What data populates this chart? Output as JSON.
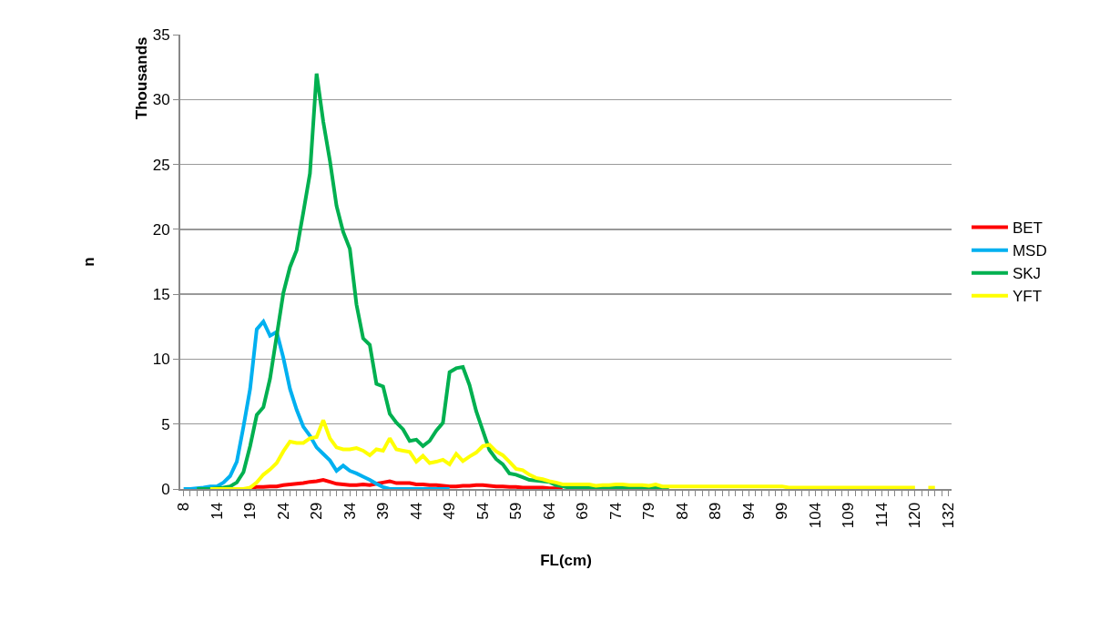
{
  "chart_data": {
    "type": "line",
    "xlabel": "FL(cm)",
    "ylabel": "n",
    "annotations": [
      "Thousands"
    ],
    "categories": [
      "8",
      null,
      null,
      null,
      null,
      "14",
      null,
      null,
      null,
      null,
      "19",
      null,
      null,
      null,
      null,
      "24",
      null,
      null,
      null,
      null,
      "29",
      null,
      null,
      null,
      null,
      "34",
      null,
      null,
      null,
      null,
      "39",
      null,
      null,
      null,
      null,
      "44",
      null,
      null,
      null,
      null,
      "49",
      null,
      null,
      null,
      null,
      "54",
      null,
      null,
      null,
      null,
      "59",
      null,
      null,
      null,
      null,
      "64",
      null,
      null,
      null,
      null,
      "69",
      null,
      null,
      null,
      null,
      "74",
      null,
      null,
      null,
      null,
      "79",
      null,
      null,
      null,
      null,
      "84",
      null,
      null,
      null,
      null,
      "89",
      null,
      null,
      null,
      null,
      "94",
      null,
      null,
      null,
      null,
      "99",
      null,
      null,
      null,
      null,
      "104",
      null,
      null,
      null,
      null,
      "109",
      null,
      null,
      null,
      null,
      "114",
      null,
      null,
      null,
      null,
      "120",
      null,
      null,
      null,
      null,
      "132"
    ],
    "series": [
      {
        "name": "BET",
        "color": "#ff0000",
        "values": [
          null,
          null,
          null,
          null,
          null,
          null,
          null,
          null,
          null,
          null,
          0.1,
          0.15,
          0.15,
          0.2,
          0.2,
          0.3,
          0.35,
          0.4,
          0.45,
          0.55,
          0.6,
          0.7,
          0.55,
          0.4,
          0.35,
          0.3,
          0.3,
          0.35,
          0.3,
          0.4,
          0.5,
          0.6,
          0.45,
          0.45,
          0.45,
          0.35,
          0.35,
          0.3,
          0.3,
          0.25,
          0.2,
          0.2,
          0.25,
          0.25,
          0.3,
          0.3,
          0.25,
          0.2,
          0.2,
          0.15,
          0.15,
          0.1,
          0.1,
          0.1,
          0.1,
          0.05,
          0.05,
          0.05,
          null,
          null,
          null,
          null,
          null,
          null,
          null,
          null,
          null,
          null,
          null,
          null,
          null,
          null,
          null,
          null,
          null,
          null,
          null,
          null,
          null,
          null,
          null,
          null,
          null,
          null,
          null,
          null,
          null,
          null,
          null,
          null,
          null,
          null,
          null,
          null,
          null,
          null,
          null,
          null,
          null,
          null,
          null,
          null,
          null,
          null,
          null,
          null,
          null,
          null,
          null,
          null,
          null,
          null,
          null,
          null,
          null,
          null
        ]
      },
      {
        "name": "MSD",
        "color": "#00b0f0",
        "values": [
          0,
          0,
          0.05,
          0.1,
          0.2,
          0.2,
          0.5,
          1.0,
          2.1,
          4.8,
          7.7,
          12.3,
          12.9,
          11.8,
          12.1,
          10.1,
          7.7,
          6.1,
          4.8,
          4.1,
          3.2,
          2.7,
          2.2,
          1.4,
          1.8,
          1.4,
          1.2,
          0.95,
          0.7,
          0.4,
          0.15,
          0,
          0,
          0,
          0,
          0,
          0,
          0,
          0,
          0,
          0,
          null,
          null,
          null,
          null,
          null,
          null,
          null,
          null,
          null,
          null,
          null,
          null,
          null,
          null,
          null,
          null,
          null,
          null,
          null,
          null,
          null,
          null,
          null,
          null,
          null,
          null,
          null,
          null,
          null,
          null,
          null,
          null,
          null,
          null,
          null,
          null,
          null,
          null,
          null,
          null,
          null,
          null,
          null,
          null,
          null,
          null,
          null,
          null,
          null,
          null,
          null,
          null,
          null,
          null,
          null,
          null,
          null,
          null,
          null,
          null,
          null,
          null,
          null,
          null,
          null,
          null,
          null,
          null,
          null,
          null,
          null,
          null,
          null,
          null,
          null
        ]
      },
      {
        "name": "SKJ",
        "color": "#00b050",
        "values": [
          null,
          null,
          0,
          0,
          0,
          0.05,
          0.1,
          0.2,
          0.5,
          1.3,
          3.3,
          5.7,
          6.3,
          8.5,
          11.8,
          15.1,
          17.1,
          18.4,
          21.3,
          24.3,
          32.0,
          28.3,
          25.3,
          21.8,
          19.8,
          18.5,
          14.2,
          11.6,
          11.1,
          8.1,
          7.9,
          5.8,
          5.1,
          4.6,
          3.7,
          3.8,
          3.3,
          3.7,
          4.5,
          5.1,
          9.0,
          9.3,
          9.4,
          8.0,
          6.0,
          4.5,
          3.0,
          2.3,
          1.9,
          1.2,
          1.1,
          0.9,
          0.7,
          0.65,
          0.6,
          0.55,
          0.3,
          0.2,
          0.1,
          0.1,
          0.1,
          0.1,
          0.1,
          0.1,
          0.1,
          0.1,
          0.1,
          0.1,
          0.1,
          0.1,
          0.1,
          0.1,
          0.1,
          0.1,
          null,
          null,
          null,
          null,
          null,
          null,
          null,
          null,
          null,
          null,
          null,
          null,
          null,
          null,
          null,
          null,
          null,
          null,
          null,
          null,
          null,
          null,
          null,
          null,
          null,
          null,
          null,
          null,
          null,
          null,
          null,
          null,
          null,
          null,
          null,
          null,
          null,
          null,
          null,
          null,
          null,
          null
        ]
      },
      {
        "name": "YFT",
        "color": "#ffff00",
        "values": [
          null,
          null,
          null,
          null,
          0,
          0,
          0,
          0,
          0,
          0,
          0.1,
          0.5,
          1.1,
          1.5,
          2.0,
          2.9,
          3.65,
          3.55,
          3.55,
          3.9,
          4.0,
          5.3,
          3.9,
          3.2,
          3.05,
          3.05,
          3.15,
          2.95,
          2.6,
          3.05,
          2.95,
          3.9,
          3.05,
          2.95,
          2.85,
          2.1,
          2.55,
          2.0,
          2.1,
          2.25,
          1.9,
          2.7,
          2.15,
          2.5,
          2.8,
          3.3,
          3.4,
          2.9,
          2.6,
          2.1,
          1.55,
          1.45,
          1.1,
          0.85,
          0.75,
          0.6,
          0.5,
          0.35,
          0.35,
          0.35,
          0.35,
          0.35,
          0.25,
          0.3,
          0.3,
          0.35,
          0.35,
          0.3,
          0.3,
          0.3,
          0.25,
          0.35,
          0.2,
          0.2,
          0.2,
          0.2,
          0.2,
          0.2,
          0.2,
          0.2,
          0.2,
          0.2,
          0.2,
          0.2,
          0.2,
          0.2,
          0.2,
          0.2,
          0.2,
          0.2,
          0.2,
          0.1,
          0.1,
          0.1,
          0.1,
          0.1,
          0.1,
          0.1,
          0.1,
          0.1,
          0.1,
          0.1,
          0.1,
          0.1,
          0.1,
          0.1,
          0.1,
          0.1,
          0.1,
          0.1,
          0.1,
          null,
          0.1,
          0.1,
          null,
          null
        ]
      }
    ],
    "ylim": [
      0,
      35
    ],
    "yticks": [
      0,
      5,
      10,
      15,
      20,
      25,
      30,
      35
    ],
    "grid": "y",
    "legend": "right",
    "marker": "none",
    "line_style": "solid"
  }
}
